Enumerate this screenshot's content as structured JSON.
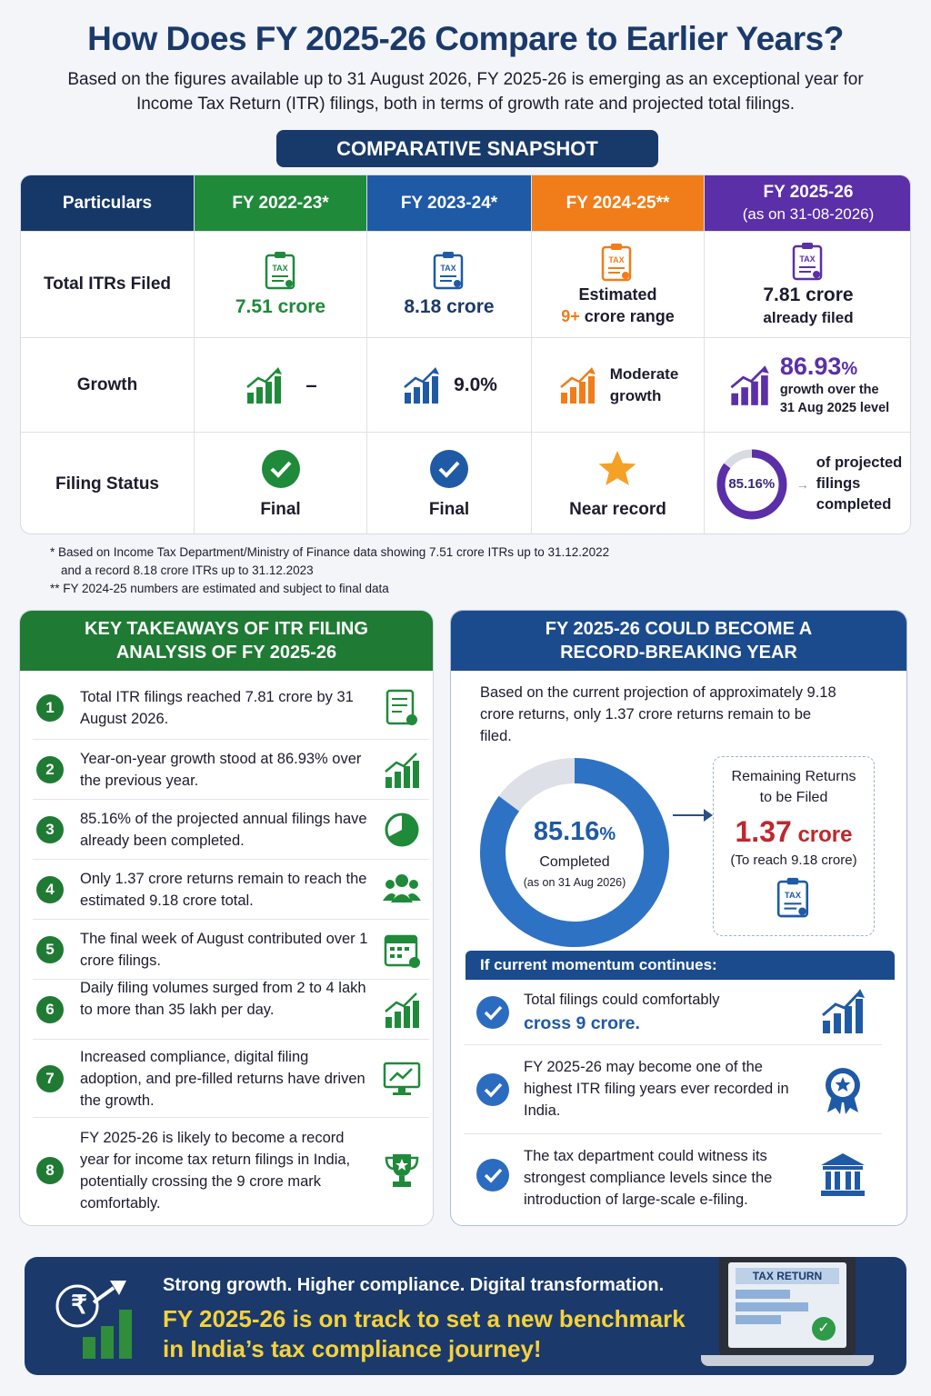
{
  "title": "How Does FY 2025-26 Compare to Earlier Years?",
  "subtitle": "Based on the figures available up to 31 August 2026, FY 2025-26 is emerging as an exceptional year for Income Tax Return (ITR) filings, both in terms of growth rate and projected total filings.",
  "snapshot_label": "COMPARATIVE SNAPSHOT",
  "table": {
    "headers": {
      "particulars": "Particulars",
      "fy2223": "FY 2022-23*",
      "fy2324": "FY 2023-24*",
      "fy2425": "FY 2024-25**",
      "fy2526_line1": "FY 2025-26",
      "fy2526_line2": "(as on 31-08-2026)"
    },
    "rows": {
      "total_itrs": "Total ITRs Filed",
      "growth": "Growth",
      "filing_status": "Filing Status"
    },
    "tax_icon_text": "TAX",
    "total": {
      "fy2223": "7.51 crore",
      "fy2324": "8.18 crore",
      "fy2425_line1": "Estimated",
      "fy2425_highlight": "9+",
      "fy2425_rest": " crore range",
      "fy2526_line1": "7.81 crore",
      "fy2526_line2": "already filed"
    },
    "growth": {
      "fy2223": "–",
      "fy2324": "9.0%",
      "fy2425_line1": "Moderate",
      "fy2425_line2": "growth",
      "fy2526_value": "86.93",
      "fy2526_pct": "%",
      "fy2526_line1": "growth over the",
      "fy2526_line2": "31 Aug 2025 level"
    },
    "status": {
      "fy2223": "Final",
      "fy2324": "Final",
      "fy2425": "Near record",
      "fy2526_pct": "85.16%",
      "fy2526_progress": 0.8516,
      "fy2526_line1": "of projected",
      "fy2526_line2": "filings",
      "fy2526_line3": "completed"
    }
  },
  "footnotes": {
    "line1": "* Based on Income Tax Department/Ministry of Finance data showing 7.51 crore ITRs up to 31.12.2022",
    "line2": "and a record 8.18 crore ITRs up to 31.12.2023",
    "line3": "** FY 2024-25 numbers are estimated and subject to final data"
  },
  "takeaways": {
    "heading_line1": "KEY TAKEAWAYS OF ITR FILING",
    "heading_line2": "ANALYSIS OF FY 2025-26",
    "items": [
      {
        "num": "1",
        "text": "Total ITR filings reached 7.81 crore by 31 August 2026."
      },
      {
        "num": "2",
        "text": "Year-on-year growth stood at 86.93% over the previous year."
      },
      {
        "num": "3",
        "text": "85.16% of the projected annual filings have already been completed."
      },
      {
        "num": "4",
        "text": "Only 1.37 crore returns remain to reach the estimated 9.18 crore total."
      },
      {
        "num": "5",
        "text": "The final week of August contributed over 1 crore filings."
      },
      {
        "num": "6",
        "text": "Daily filing volumes surged from 2 to 4 lakh to more than 35 lakh per day."
      },
      {
        "num": "7",
        "text": "Increased compliance, digital filing adoption, and pre-filled returns have driven the growth."
      },
      {
        "num": "8",
        "text": "FY 2025-26 is likely to become a record year for income tax return filings in India, potentially crossing the 9 crore mark comfortably."
      }
    ]
  },
  "record": {
    "heading_line1": "FY 2025-26 COULD BECOME A",
    "heading_line2": "RECORD-BREAKING YEAR",
    "intro": "Based on the current projection of approximately 9.18 crore returns,  only 1.37 crore returns remain to be filed.",
    "donut_value": "85.16",
    "donut_pct": "%",
    "donut_progress": 0.8516,
    "donut_label": "Completed",
    "donut_sub": "(as on 31 Aug 2026)",
    "remaining_title": "Remaining Returns to be Filed",
    "remaining_value": "1.37",
    "remaining_unit": " crore",
    "remaining_sub": "(To reach 9.18 crore)",
    "momentum_heading": "If current momentum continues:",
    "momentum": [
      {
        "pre": "Total filings could comfortably",
        "bold": "cross 9 crore."
      },
      {
        "pre": "FY 2025-26 may become one of the highest ITR filing years ever recorded in India.",
        "bold": ""
      },
      {
        "pre": "The tax department could witness its strongest compliance levels since the introduction of large-scale e-filing.",
        "bold": ""
      }
    ]
  },
  "banner": {
    "line1": "Strong growth. Higher compliance. Digital transformation.",
    "line2": "FY 2025-26 is on track to set a new benchmark",
    "line3": "in India’s tax compliance journey!",
    "laptop_label": "TAX RETURN",
    "rupee": "₹"
  },
  "colors": {
    "navy": "#1b3a6b",
    "green": "#1f8a3a",
    "blue": "#1f5aa6",
    "orange": "#f07d1a",
    "purple": "#5b2fa8",
    "yellow": "#f6d23a",
    "red": "#c0262d"
  }
}
